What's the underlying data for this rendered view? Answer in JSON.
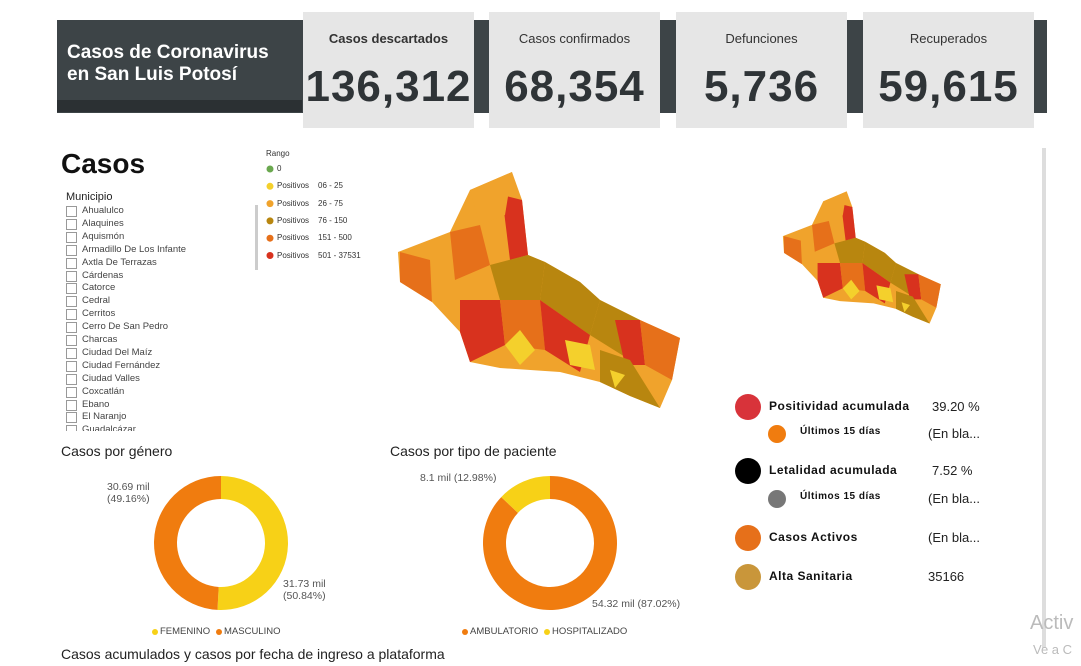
{
  "header": {
    "title_lines": [
      "Casos de Coronavirus",
      "en San Luis Potosí"
    ]
  },
  "kpis": [
    {
      "label": "Casos descartados",
      "value": "136,312"
    },
    {
      "label": "Casos confirmados",
      "value": "68,354"
    },
    {
      "label": "Defunciones",
      "value": "5,736"
    },
    {
      "label": "Recuperados",
      "value": "59,615"
    }
  ],
  "map_section": {
    "title": "Casos",
    "filter_label": "Municipio",
    "municipios": [
      "Ahualulco",
      "Alaquines",
      "Aquismón",
      "Armadillo De Los Infante",
      "Axtla De Terrazas",
      "Cárdenas",
      "Catorce",
      "Cedral",
      "Cerritos",
      "Cerro De San Pedro",
      "Charcas",
      "Ciudad Del Maíz",
      "Ciudad Fernández",
      "Ciudad Valles",
      "Coxcatlán",
      "Ebano",
      "El Naranjo",
      "Guadalcázar"
    ],
    "legend_title": "Rango",
    "legend": [
      {
        "label": "0",
        "color": "#6aa84f"
      },
      {
        "label": "Positivos",
        "range": "06 - 25",
        "color": "#f4d02c"
      },
      {
        "label": "Positivos",
        "range": "26 - 75",
        "color": "#f0a32c"
      },
      {
        "label": "Positivos",
        "range": "76 - 150",
        "color": "#b8860f"
      },
      {
        "label": "Positivos",
        "range": "151 - 500",
        "color": "#e6701a"
      },
      {
        "label": "Positivos",
        "range": "501 - 37531",
        "color": "#d8321e"
      }
    ]
  },
  "indicators": [
    {
      "label": "Positividad acumulada",
      "value": "39.20 %",
      "color": "#d8333a"
    },
    {
      "label": "Últimos 15 días",
      "value": "(En bla...",
      "color": "#f07c0f"
    },
    {
      "label": "Letalidad acumulada",
      "value": "7.52 %",
      "color": "#000000"
    },
    {
      "label": "Últimos 15 días",
      "value": "(En bla...",
      "color": "#777777"
    },
    {
      "label": "Casos Activos",
      "value": "(En bla...",
      "color": "#e6701a"
    },
    {
      "label": "Alta Sanitaria",
      "value": "35166",
      "color": "#c9963a"
    }
  ],
  "gender_chart": {
    "type": "pie",
    "title": "Casos por género",
    "categories": [
      "FEMENINO",
      "MASCULINO"
    ],
    "colors": [
      "#f7d117",
      "#f07c0f"
    ],
    "values": [
      31.73,
      30.69
    ],
    "value_labels": [
      "31.73 mil (50.84%)",
      "30.69 mil (49.16%)"
    ]
  },
  "patient_chart": {
    "type": "pie",
    "title": "Casos por tipo de paciente",
    "categories": [
      "AMBULATORIO",
      "HOSPITALIZADO"
    ],
    "colors": [
      "#f07c0f",
      "#f7d117"
    ],
    "values": [
      54.32,
      8.1
    ],
    "value_labels": [
      "54.32 mil (87.02%)",
      "8.1 mil (12.98%)"
    ]
  },
  "footer_title": "Casos acumulados y casos por fecha de ingreso a plataforma",
  "watermark": [
    "Activ",
    "Ve a C"
  ]
}
